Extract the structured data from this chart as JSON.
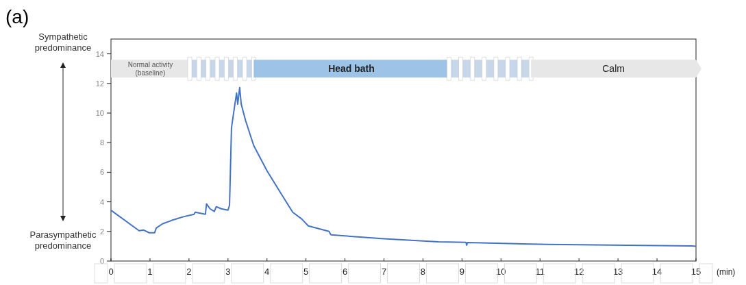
{
  "chart_data": {
    "type": "line",
    "title": "(a)",
    "xlabel": "(min)",
    "annotations": [
      "Sympathetic predominance",
      "Parasympathetic predominance"
    ],
    "xlim": [
      0,
      15
    ],
    "xticks": [
      0,
      1,
      2,
      3,
      4,
      5,
      6,
      7,
      8,
      9,
      10,
      11,
      12,
      13,
      14,
      15
    ],
    "ylim": [
      0,
      15
    ],
    "yticks": [
      0,
      2,
      4,
      6,
      8,
      10,
      12,
      14
    ],
    "grid": false,
    "bands": [
      {
        "axis": "x",
        "from": 0,
        "to": 2.02,
        "label": "Normal activity (baseline)",
        "color": "#e7e7e7"
      },
      {
        "axis": "x",
        "from": 2.02,
        "to": 3.66,
        "label": null,
        "color": "#c8d6e9"
      },
      {
        "axis": "x",
        "from": 3.66,
        "to": 8.67,
        "label": "Head bath",
        "color": "#9dc3e6"
      },
      {
        "axis": "x",
        "from": 8.67,
        "to": 10.77,
        "label": null,
        "color": "#c8d6e9"
      },
      {
        "axis": "x",
        "from": 10.77,
        "to": 15,
        "label": "Calm",
        "color": "#e7e7e7"
      }
    ],
    "series": [
      {
        "color": "#4472c4",
        "x": [
          0,
          0.72,
          0.84,
          0.98,
          1.12,
          1.16,
          1.32,
          1.55,
          1.84,
          2.13,
          2.16,
          2.42,
          2.45,
          2.54,
          2.65,
          2.7,
          2.83,
          3.0,
          3.04,
          3.09,
          3.16,
          3.22,
          3.25,
          3.3,
          3.34,
          3.45,
          3.66,
          4.0,
          4.36,
          4.66,
          4.89,
          5.06,
          5.59,
          5.64,
          7.0,
          8.4,
          9.1,
          9.12,
          9.14,
          11.2,
          14.9,
          15
        ],
        "values": [
          3.43,
          2.05,
          2.09,
          1.91,
          1.91,
          2.23,
          2.51,
          2.74,
          2.98,
          3.16,
          3.3,
          3.16,
          3.86,
          3.53,
          3.35,
          3.67,
          3.53,
          3.44,
          3.77,
          9.0,
          10.28,
          11.35,
          10.6,
          11.72,
          10.6,
          9.5,
          7.8,
          6.1,
          4.56,
          3.3,
          2.84,
          2.37,
          2.0,
          1.77,
          1.5,
          1.3,
          1.26,
          1.07,
          1.25,
          1.12,
          1.02,
          1.0
        ]
      }
    ]
  }
}
